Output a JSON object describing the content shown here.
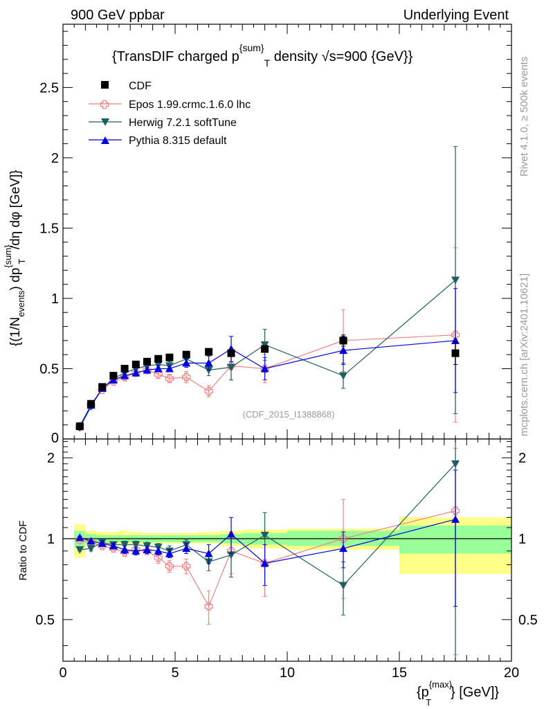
{
  "header": {
    "left": "900 GeV ppbar",
    "right": "Underlying Event"
  },
  "side": {
    "rivet": "Rivet 4.1.0, ≥ 500k events",
    "mcplots": "mcplots.cern.ch [arXiv:2401.10621]"
  },
  "analysis_id": "(CDF_2015_I1388868)",
  "colors": {
    "cdf": "#000000",
    "epos": "#f08080",
    "herwig": "#1f5f5f",
    "pythia": "#0000dd",
    "band_inner": "#99ff99",
    "band_outer": "#ffff88"
  },
  "chart_data": [
    {
      "type": "scatter",
      "title": "{TransDIF charged p",
      "title_sup": "{sum}",
      "title_sub": "T",
      "title_rest": " density √s=900 {GeV}}",
      "ylabel_parts": [
        "{(1/N",
        "events",
        ") dp",
        "{sum}",
        "T",
        " /dη  dφ [GeV]}"
      ],
      "ylim": [
        0,
        2.95
      ],
      "xlim": [
        0,
        20
      ],
      "yticks": [
        0.5,
        1,
        1.5,
        2,
        2.5
      ],
      "ytick_labels": [
        "0.5",
        "1",
        "1.5",
        "2",
        "2.5"
      ],
      "y0_label": "0",
      "legend_position": "top-left",
      "series": [
        {
          "name": "CDF",
          "marker": "square",
          "x": [
            0.75,
            1.25,
            1.75,
            2.25,
            2.75,
            3.25,
            3.75,
            4.25,
            4.75,
            5.5,
            6.5,
            7.5,
            9.0,
            12.5,
            17.5
          ],
          "values": [
            0.09,
            0.25,
            0.37,
            0.45,
            0.5,
            0.53,
            0.55,
            0.57,
            0.58,
            0.6,
            0.62,
            0.61,
            0.64,
            0.7,
            0.61
          ],
          "errors": [
            0.005,
            0.01,
            0.01,
            0.01,
            0.01,
            0.01,
            0.01,
            0.01,
            0.01,
            0.01,
            0.01,
            0.015,
            0.02,
            0.04,
            0.08
          ]
        },
        {
          "name": "Epos 1.99.crmc.1.6.0 lhc",
          "marker": "open-cross",
          "x": [
            0.75,
            1.25,
            1.75,
            2.25,
            2.75,
            3.25,
            3.75,
            4.25,
            4.75,
            5.5,
            6.5,
            7.5,
            9.0,
            12.5,
            17.5
          ],
          "values": [
            0.09,
            0.24,
            0.35,
            0.41,
            0.44,
            0.47,
            0.49,
            0.46,
            0.43,
            0.44,
            0.34,
            0.52,
            0.5,
            0.7,
            0.74
          ],
          "errors": [
            0.005,
            0.01,
            0.01,
            0.015,
            0.02,
            0.02,
            0.02,
            0.03,
            0.03,
            0.04,
            0.04,
            0.1,
            0.1,
            0.22,
            0.62
          ]
        },
        {
          "name": "Herwig 7.2.1 softTune",
          "marker": "triangle-down",
          "x": [
            0.75,
            1.25,
            1.75,
            2.25,
            2.75,
            3.25,
            3.75,
            4.25,
            4.75,
            5.5,
            6.5,
            7.5,
            9.0,
            12.5,
            17.5
          ],
          "values": [
            0.08,
            0.23,
            0.36,
            0.43,
            0.47,
            0.5,
            0.52,
            0.53,
            0.52,
            0.57,
            0.49,
            0.51,
            0.67,
            0.45,
            1.13
          ],
          "errors": [
            0.005,
            0.01,
            0.01,
            0.01,
            0.02,
            0.02,
            0.02,
            0.02,
            0.03,
            0.03,
            0.04,
            0.09,
            0.11,
            0.09,
            0.95
          ]
        },
        {
          "name": "Pythia 8.315 default",
          "marker": "triangle-up",
          "x": [
            0.75,
            1.25,
            1.75,
            2.25,
            2.75,
            3.25,
            3.75,
            4.25,
            4.75,
            5.5,
            6.5,
            7.5,
            9.0,
            12.5,
            17.5
          ],
          "values": [
            0.09,
            0.24,
            0.36,
            0.42,
            0.45,
            0.47,
            0.49,
            0.5,
            0.5,
            0.54,
            0.54,
            0.64,
            0.5,
            0.63,
            0.7
          ],
          "errors": [
            0.005,
            0.01,
            0.01,
            0.01,
            0.02,
            0.02,
            0.02,
            0.02,
            0.02,
            0.03,
            0.05,
            0.09,
            0.08,
            0.1,
            0.37
          ]
        }
      ]
    },
    {
      "type": "scatter",
      "title": "",
      "ylabel": "Ratio to CDF",
      "xlabel_parts": [
        "{p",
        "{max}",
        "T",
        "} [GeV]}"
      ],
      "ylim": [
        0.35,
        2.35
      ],
      "xlim": [
        0,
        20
      ],
      "xticks": [
        0,
        5,
        10,
        15,
        20
      ],
      "xtick_labels": [
        "0",
        "5",
        "10",
        "15",
        "20"
      ],
      "yticks": [
        0.5,
        1,
        2
      ],
      "ytick_labels": [
        "0.5",
        "1",
        "2"
      ],
      "bands": {
        "edges": [
          0.5,
          1.0,
          1.5,
          2.0,
          2.5,
          3.0,
          3.5,
          4.0,
          4.5,
          5.0,
          6.0,
          7.0,
          8.0,
          10.0,
          15.0,
          20.0
        ],
        "inner_lo": [
          0.93,
          0.96,
          0.97,
          0.97,
          0.97,
          0.97,
          0.97,
          0.97,
          0.97,
          0.97,
          0.97,
          0.96,
          0.95,
          0.94,
          0.88
        ],
        "inner_hi": [
          1.07,
          1.04,
          1.03,
          1.03,
          1.03,
          1.03,
          1.03,
          1.03,
          1.03,
          1.03,
          1.03,
          1.04,
          1.05,
          1.07,
          1.12
        ],
        "outer_lo": [
          0.85,
          0.95,
          0.95,
          0.95,
          0.95,
          0.95,
          0.96,
          0.96,
          0.96,
          0.96,
          0.96,
          0.94,
          0.92,
          0.91,
          0.74
        ],
        "outer_hi": [
          1.13,
          1.07,
          1.06,
          1.06,
          1.07,
          1.06,
          1.05,
          1.05,
          1.05,
          1.05,
          1.06,
          1.07,
          1.08,
          1.09,
          1.2
        ]
      },
      "series": [
        {
          "name": "Epos 1.99.crmc.1.6.0 lhc",
          "x": [
            0.75,
            1.25,
            1.75,
            2.25,
            2.75,
            3.25,
            3.75,
            4.25,
            4.75,
            5.5,
            6.5,
            7.5,
            9.0,
            12.5,
            17.5
          ],
          "values": [
            0.99,
            0.97,
            0.94,
            0.92,
            0.89,
            0.91,
            0.9,
            0.85,
            0.79,
            0.79,
            0.56,
            0.9,
            0.81,
            1.0,
            1.27
          ],
          "errors": [
            0.01,
            0.02,
            0.02,
            0.02,
            0.03,
            0.03,
            0.03,
            0.04,
            0.04,
            0.05,
            0.08,
            0.16,
            0.2,
            0.4,
            0.9
          ]
        },
        {
          "name": "Herwig 7.2.1 softTune",
          "x": [
            0.75,
            1.25,
            1.75,
            2.25,
            2.75,
            3.25,
            3.75,
            4.25,
            4.75,
            5.5,
            6.5,
            7.5,
            9.0,
            12.5,
            17.5
          ],
          "values": [
            0.91,
            0.92,
            0.97,
            0.95,
            0.95,
            0.95,
            0.94,
            0.93,
            0.9,
            0.95,
            0.82,
            0.87,
            1.03,
            0.67,
            1.9
          ],
          "errors": [
            0.01,
            0.02,
            0.02,
            0.02,
            0.03,
            0.03,
            0.03,
            0.03,
            0.04,
            0.04,
            0.06,
            0.15,
            0.22,
            0.15,
            1.6
          ]
        },
        {
          "name": "Pythia 8.315 default",
          "x": [
            0.75,
            1.25,
            1.75,
            2.25,
            2.75,
            3.25,
            3.75,
            4.25,
            4.75,
            5.5,
            6.5,
            7.5,
            9.0,
            12.5,
            17.5
          ],
          "values": [
            1.01,
            0.98,
            0.96,
            0.94,
            0.91,
            0.9,
            0.91,
            0.9,
            0.88,
            0.92,
            0.88,
            1.04,
            0.81,
            0.92,
            1.18
          ],
          "errors": [
            0.01,
            0.02,
            0.02,
            0.02,
            0.03,
            0.03,
            0.03,
            0.03,
            0.03,
            0.04,
            0.07,
            0.16,
            0.14,
            0.14,
            0.62
          ]
        }
      ]
    }
  ]
}
